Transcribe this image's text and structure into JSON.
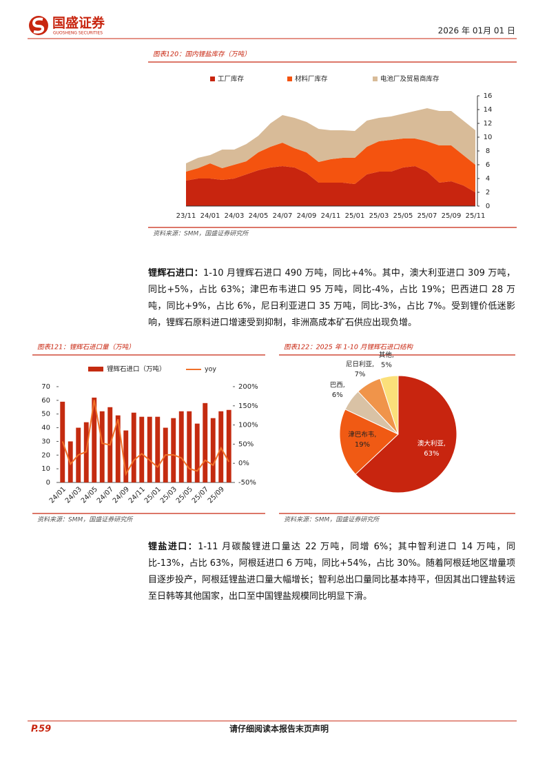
{
  "header": {
    "logo": "国盛证券",
    "logo_sub": "GUOSHENG SECURITIES",
    "date": "2026 年 01月 01 日"
  },
  "chart_data": [
    {
      "type": "area",
      "stacked": true,
      "title": "图表120：国内锂盐库存（万吨）",
      "source": "资料来源：SMM，国盛证券研究所",
      "categories": [
        "23/11",
        null,
        "24/01",
        null,
        "24/03",
        null,
        "24/05",
        null,
        "24/07",
        null,
        "24/09",
        null,
        "24/11",
        null,
        "25/01",
        null,
        "25/03",
        null,
        "25/05",
        null,
        "25/07",
        null,
        "25/09",
        null,
        "25/11"
      ],
      "series": [
        {
          "name": "工厂库存",
          "color": "#c8250f",
          "values": [
            3.7,
            4.0,
            4.0,
            3.8,
            4.0,
            4.6,
            5.2,
            5.6,
            5.8,
            5.6,
            4.8,
            3.4,
            3.4,
            3.4,
            3.2,
            4.6,
            5.0,
            5.0,
            5.6,
            5.8,
            5.0,
            3.4,
            3.6,
            3.0,
            2.0
          ]
        },
        {
          "name": "材料厂库存",
          "color": "#f4530f",
          "values": [
            1.3,
            1.5,
            2.2,
            1.7,
            2.0,
            1.9,
            2.6,
            3.0,
            3.4,
            2.8,
            3.0,
            3.0,
            3.4,
            3.6,
            3.8,
            4.0,
            4.4,
            4.6,
            4.2,
            4.0,
            4.4,
            5.4,
            5.2,
            4.4,
            4.0
          ]
        },
        {
          "name": "电池厂及贸易商库存",
          "color": "#d8bb98",
          "values": [
            1.2,
            1.5,
            1.2,
            2.7,
            2.2,
            2.5,
            2.4,
            3.4,
            4.0,
            4.4,
            4.4,
            4.8,
            4.2,
            4.0,
            3.9,
            3.8,
            3.4,
            3.4,
            3.6,
            4.0,
            4.8,
            5.0,
            5.0,
            5.0,
            5.0
          ]
        }
      ],
      "ylim": [
        0,
        16
      ],
      "yticks": [
        0,
        2,
        4,
        6,
        8,
        10,
        12,
        14,
        16
      ],
      "y_axis_side": "right"
    },
    {
      "type": "bar",
      "title": "图表121：锂辉石进口量（万吨）",
      "source": "资料来源：SMM，国盛证券研究所",
      "categories": [
        "24/01",
        null,
        "24/03",
        null,
        "24/05",
        null,
        "24/07",
        null,
        "24/09",
        null,
        "24/11",
        null,
        "25/01",
        null,
        "25/03",
        null,
        "25/05",
        null,
        "25/07",
        null,
        "25/09",
        null
      ],
      "series": [
        {
          "name": "锂辉石进口（万吨）",
          "type": "bar",
          "color": "#c42b10",
          "values": [
            59,
            30,
            40,
            44,
            62,
            52,
            55,
            49,
            38,
            51,
            48,
            48,
            48,
            40,
            47,
            52,
            52,
            43,
            58,
            47,
            52,
            53
          ]
        },
        {
          "name": "yoy",
          "type": "line",
          "axis": "y2",
          "color": "#f07028",
          "values": [
            57,
            -2,
            22,
            30,
            165,
            52,
            48,
            115,
            -28,
            8,
            25,
            8,
            -10,
            22,
            22,
            14,
            -14,
            -20,
            8,
            -5,
            40,
            4
          ]
        }
      ],
      "ylim": [
        0,
        70
      ],
      "yticks": [
        0,
        10,
        20,
        30,
        40,
        50,
        60,
        70
      ],
      "y2lim": [
        -50,
        200
      ],
      "y2ticks": [
        {
          "value": -50,
          "label": "-50%"
        },
        {
          "value": 0,
          "label": "0%"
        },
        {
          "value": 50,
          "label": "50%"
        },
        {
          "value": 100,
          "label": "100%"
        },
        {
          "value": 150,
          "label": "150%"
        },
        {
          "value": 200,
          "label": "200%"
        }
      ]
    },
    {
      "type": "pie",
      "title": "图表122：2025 年 1-10 月锂辉石进口结构",
      "source": "资料来源：SMM，国盛证券研究所",
      "categories": [
        "澳大利亚,",
        "津巴布韦,",
        "巴西,",
        "尼日利亚,",
        "其他,"
      ],
      "values": [
        63,
        19,
        6,
        7,
        5
      ],
      "value_labels": [
        "63%",
        "19%",
        "6%",
        "7%",
        "5%"
      ],
      "colors": [
        "#c8250f",
        "#f05a14",
        "#d9c2a5",
        "#f0944a",
        "#fbe07a"
      ]
    }
  ],
  "paragraphs": [
    {
      "lead": "锂辉石进口：",
      "text": "1-10 月锂辉石进口 490 万吨，同比+4%。其中，澳大利亚进口 309 万吨，同比+5%，占比 63%；津巴布韦进口 95 万吨，同比-4%，占比 19%；巴西进口 28 万吨，同比+9%，占比 6%，尼日利亚进口 35 万吨，同比-3%，占比 7%。受到锂价低迷影响，锂辉石原料进口增速受到抑制，非洲高成本矿石供应出现负增。"
    },
    {
      "lead": "锂盐进口：",
      "text": "1-11 月碳酸锂进口量达 22 万吨，同增 6%；其中智利进口 14 万吨，同比-13%，占比 63%，阿根廷进口 6 万吨，同比+54%，占比 30%。随着阿根廷地区增量项目逐步投产，阿根廷锂盐进口量大幅增长；智利总出口量同比基本持平，但因其出口锂盐转运至日韩等其他国家，出口至中国锂盐规模同比明显下滑。"
    }
  ],
  "footer": {
    "page": "P.59",
    "notice": "请仔细阅读本报告末页声明"
  }
}
